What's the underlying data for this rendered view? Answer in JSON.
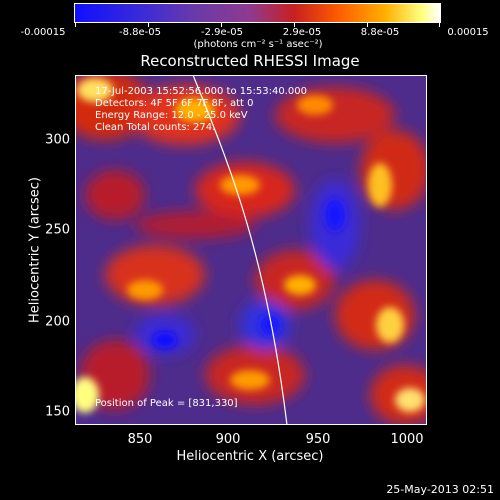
{
  "colorbar": {
    "tick_labels": [
      "-0.00015",
      "-8.8e-05",
      "-2.9e-05",
      "2.9e-05",
      "8.8e-05",
      "0.00015"
    ],
    "unit": "(photons cm⁻² s⁻¹ asec⁻²)",
    "colors": [
      "#1010ff",
      "#6a3aa8",
      "#c82020",
      "#ff5a00",
      "#ffb000",
      "#ffffff"
    ]
  },
  "plot": {
    "title": "Reconstructed RHESSI Image",
    "time_range": "17-Jul-2003 15:52:56.000 to 15:53:40.000",
    "detectors": "Detectors: 4F 5F 6F 7F 8F, att 0",
    "energy_range": "Energy Range: 12.0 - 25.0 keV",
    "clean_counts": "Clean    Total counts: 274.",
    "peak": "Position of Peak = [831,330]",
    "xlabel": "Heliocentric X (arcsec)",
    "ylabel": "Heliocentric Y (arcsec)",
    "x_ticks": [
      "850",
      "900",
      "950",
      "1000"
    ],
    "y_ticks": [
      "300",
      "250",
      "200",
      "150"
    ]
  },
  "footer": {
    "timestamp": "25-May-2013 02:51"
  }
}
